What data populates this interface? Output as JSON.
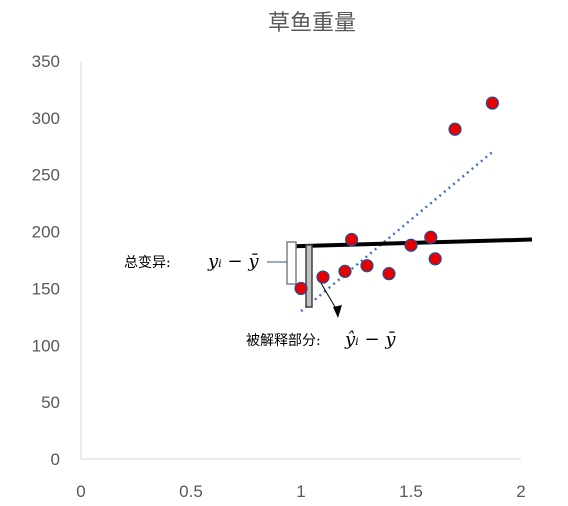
{
  "chart_data": {
    "type": "scatter",
    "title": "草鱼重量",
    "xlabel": "",
    "ylabel": "",
    "xlim": [
      0,
      2
    ],
    "ylim": [
      0,
      350
    ],
    "x_ticks": [
      "0",
      "0.5",
      "1",
      "1.5",
      "2"
    ],
    "y_ticks": [
      "0",
      "50",
      "100",
      "150",
      "200",
      "250",
      "300",
      "350"
    ],
    "grid": false,
    "legend": "none",
    "points": [
      {
        "x": 1.0,
        "y": 150
      },
      {
        "x": 1.1,
        "y": 160
      },
      {
        "x": 1.2,
        "y": 165
      },
      {
        "x": 1.23,
        "y": 193
      },
      {
        "x": 1.3,
        "y": 170
      },
      {
        "x": 1.4,
        "y": 163
      },
      {
        "x": 1.5,
        "y": 188
      },
      {
        "x": 1.59,
        "y": 195
      },
      {
        "x": 1.61,
        "y": 176
      },
      {
        "x": 1.7,
        "y": 290
      },
      {
        "x": 1.87,
        "y": 313
      }
    ],
    "mean_line": {
      "x": [
        0.95,
        2.05
      ],
      "y": [
        187,
        193
      ]
    },
    "trend_line": {
      "x": [
        1.0,
        1.87
      ],
      "y": [
        130,
        270
      ]
    },
    "annotations": {
      "total_variation_label": "总变异:",
      "total_variation_formula": "yᵢ − ȳ",
      "explained_label": "被解释部分:",
      "explained_formula": "ŷᵢ − ȳ"
    },
    "colors": {
      "point_fill": "#e60000",
      "point_stroke": "#1f4e9a",
      "trend": "#4472c4",
      "mean": "#000000",
      "axis": "#d9d9d9",
      "text": "#595959"
    }
  }
}
